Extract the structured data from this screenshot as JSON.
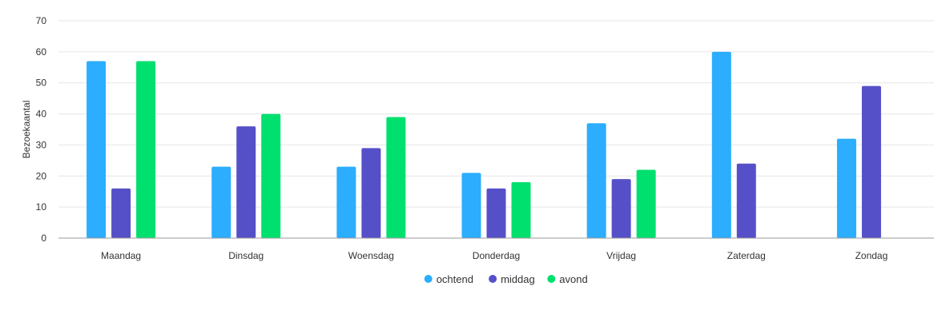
{
  "chart_data": {
    "type": "bar",
    "ylabel": "Bezoekaantal",
    "xlabel": "",
    "ylim": [
      0,
      70
    ],
    "yticks": [
      0,
      10,
      20,
      30,
      40,
      50,
      60,
      70
    ],
    "grid": true,
    "legend_position": "bottom-center",
    "categories": [
      "Maandag",
      "Dinsdag",
      "Woensdag",
      "Donderdag",
      "Vrijdag",
      "Zaterdag",
      "Zondag"
    ],
    "series": [
      {
        "name": "ochtend",
        "color": "#2CADFE",
        "values": [
          57,
          23,
          23,
          21,
          37,
          60,
          32
        ]
      },
      {
        "name": "middag",
        "color": "#5650C8",
        "values": [
          16,
          36,
          29,
          16,
          19,
          24,
          49
        ]
      },
      {
        "name": "avond",
        "color": "#00E06E",
        "values": [
          57,
          40,
          39,
          18,
          22,
          null,
          null
        ]
      }
    ]
  }
}
